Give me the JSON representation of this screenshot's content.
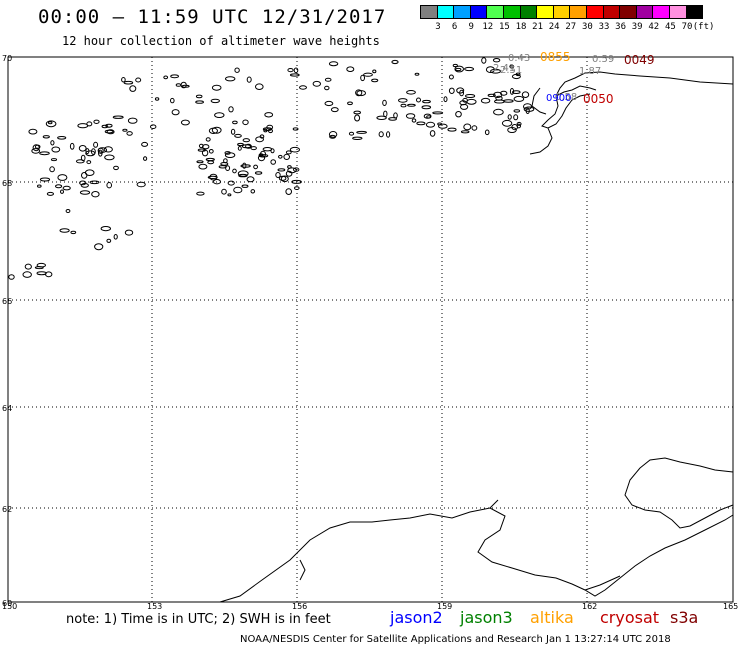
{
  "header": {
    "title": "00:00 – 11:59 UTC 12/31/2017",
    "subtitle": "12 hour collection of altimeter wave heights"
  },
  "color_scale": {
    "unit": "(ft)",
    "ticks": [
      "3",
      "6",
      "9",
      "12",
      "15",
      "18",
      "21",
      "24",
      "27",
      "30",
      "33",
      "36",
      "39",
      "42",
      "45",
      "70"
    ],
    "colors": [
      "#808080",
      "#00ffff",
      "#00a0ff",
      "#0000ff",
      "#50ff50",
      "#00c000",
      "#008000",
      "#ffff00",
      "#ffd000",
      "#ffa000",
      "#ff0000",
      "#c00000",
      "#800000",
      "#a000a0",
      "#ff00ff",
      "#ff90e0",
      "#000000"
    ]
  },
  "map": {
    "lat_labels": [
      "70",
      "68",
      "66",
      "64",
      "62",
      "60"
    ],
    "lon_labels": [
      "150",
      "153",
      "156",
      "159",
      "162",
      "165"
    ],
    "annotations": [
      {
        "text": "0.43",
        "color": "#808080"
      },
      {
        "text": "0855",
        "color": "#ffa000"
      },
      {
        "text": "0.59",
        "color": "#808080"
      },
      {
        "text": "0049",
        "color": "#800000"
      },
      {
        "text": "2.41",
        "color": "#808080"
      },
      {
        "text": "2.51",
        "color": "#808080"
      },
      {
        "text": "1.87",
        "color": "#808080"
      },
      {
        "text": "0.58",
        "color": "#808080"
      },
      {
        "text": "0050",
        "color": "#c00000"
      },
      {
        "text": "0900",
        "color": "#0000ff"
      }
    ]
  },
  "footer": {
    "note": "note: 1) Time is in UTC; 2) SWH is in feet",
    "legend": [
      {
        "label": "jason2",
        "color": "#0000ff"
      },
      {
        "label": "jason3",
        "color": "#008000"
      },
      {
        "label": "altika",
        "color": "#ffa000"
      },
      {
        "label": "cryosat",
        "color": "#c00000"
      },
      {
        "label": "s3a",
        "color": "#800000"
      }
    ],
    "credit": "NOAA/NESDIS Center for Satellite Applications and Research    Jan  1 13:27:14 UTC 2018"
  }
}
